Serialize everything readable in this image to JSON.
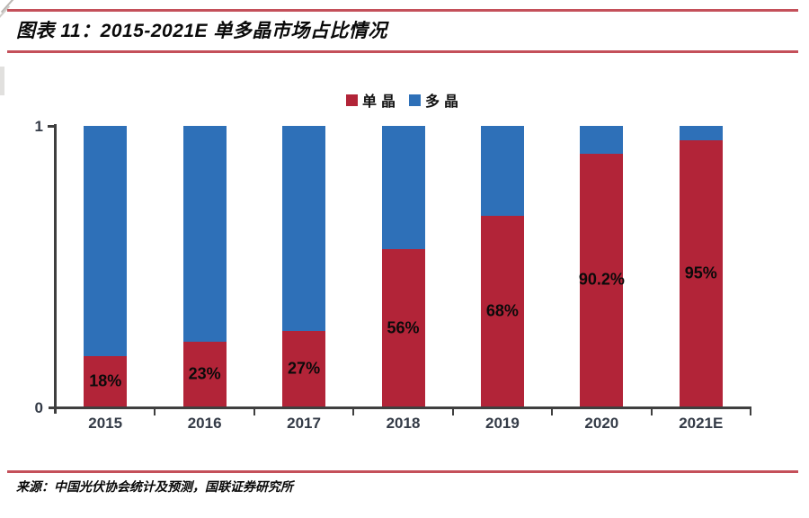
{
  "header": {
    "title": "图表 11：2015-2021E 单多晶市场占比情况"
  },
  "footer": {
    "source": "来源：中国光伏协会统计及预测，国联证券研究所"
  },
  "colors": {
    "rule": "#C4505A",
    "axis": "#3F3F3F",
    "tick_label": "#343B47",
    "data_label": "#0a0a0a",
    "mono_red": "#B22438",
    "multi_blue": "#2E70B8"
  },
  "chart_data": {
    "type": "bar",
    "stacked": true,
    "title": "2015-2021E 单多晶市场占比情况",
    "categories": [
      "2015",
      "2016",
      "2017",
      "2018",
      "2019",
      "2020",
      "2021E"
    ],
    "series": [
      {
        "name": "单晶",
        "color": "#B22438",
        "values": [
          0.18,
          0.23,
          0.27,
          0.56,
          0.68,
          0.902,
          0.95
        ],
        "data_labels": [
          "18%",
          "23%",
          "27%",
          "56%",
          "68%",
          "90.2%",
          "95%"
        ]
      },
      {
        "name": "多晶",
        "color": "#2E70B8",
        "values": [
          0.82,
          0.77,
          0.73,
          0.44,
          0.32,
          0.098,
          0.05
        ]
      }
    ],
    "xlabel": "",
    "ylabel": "",
    "ylim": [
      0,
      1
    ],
    "yticks": [
      {
        "value": 0,
        "label": "0"
      },
      {
        "value": 1,
        "label": "1"
      }
    ],
    "legend_position": "top-center",
    "grid": false
  }
}
